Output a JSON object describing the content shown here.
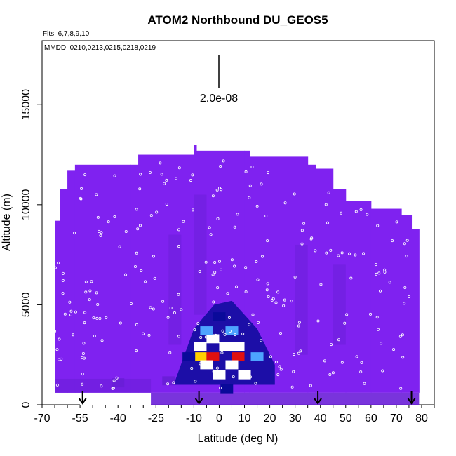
{
  "chart_data": {
    "type": "heatmap",
    "title": "ATOM2 Northbound DU_GEOS5",
    "flights_note": "Flts: 6,7,8,9,10",
    "dates_note": "MMDD: 0210,0213,0215,0218,0219",
    "scale_label": "2.0e-08",
    "xlabel": "Latitude (deg N)",
    "ylabel": "Altitude (m)",
    "xlim": [
      -70,
      85
    ],
    "ylim": [
      0,
      18200
    ],
    "x_ticks": [
      -70,
      -55,
      -40,
      -25,
      -10,
      0,
      10,
      20,
      30,
      40,
      50,
      60,
      70,
      80
    ],
    "y_ticks": [
      0,
      5000,
      10000,
      15000
    ],
    "x_tick_labels": [
      "-70",
      "-55",
      "-40",
      "-25",
      "-10",
      "0",
      "10",
      "20",
      "30",
      "40",
      "50",
      "60",
      "70",
      "80"
    ],
    "y_tick_labels": [
      "0",
      "5000",
      "10000",
      "15000"
    ],
    "grid": false,
    "colors": {
      "background_field": "#7f22f0",
      "low": "#6a1ed8",
      "mid": "#0a0a9a",
      "high1": "#4da3ff",
      "high2": "#ffffff",
      "peak1": "#ffd000",
      "peak2": "#e01010"
    },
    "ceiling_profile": [
      {
        "lat": -65,
        "alt": 9200
      },
      {
        "lat": -63,
        "alt": 10800
      },
      {
        "lat": -60,
        "alt": 11700
      },
      {
        "lat": -57,
        "alt": 12000
      },
      {
        "lat": -35,
        "alt": 12000
      },
      {
        "lat": -32,
        "alt": 12500
      },
      {
        "lat": -11,
        "alt": 12500
      },
      {
        "lat": -10,
        "alt": 13000
      },
      {
        "lat": -9,
        "alt": 12700
      },
      {
        "lat": 10,
        "alt": 12700
      },
      {
        "lat": 12,
        "alt": 12400
      },
      {
        "lat": 35,
        "alt": 12000
      },
      {
        "lat": 38,
        "alt": 11800
      },
      {
        "lat": 45,
        "alt": 10800
      },
      {
        "lat": 50,
        "alt": 10200
      },
      {
        "lat": 60,
        "alt": 9800
      },
      {
        "lat": 72,
        "alt": 9500
      },
      {
        "lat": 76,
        "alt": 8800
      },
      {
        "lat": 79,
        "alt": 8500
      }
    ],
    "dust_plume": [
      {
        "lat": -7.5,
        "alt": 2400,
        "value": 0.95
      },
      {
        "lat": -2.5,
        "alt": 2400,
        "value": 1.0
      },
      {
        "lat": 7.5,
        "alt": 2400,
        "value": 1.0
      },
      {
        "lat": -7.5,
        "alt": 2900,
        "value": 0.8
      },
      {
        "lat": -2.5,
        "alt": 3300,
        "value": 0.8
      },
      {
        "lat": 2.5,
        "alt": 2900,
        "value": 0.85
      },
      {
        "lat": 7.5,
        "alt": 2900,
        "value": 0.85
      },
      {
        "lat": -5,
        "alt": 2000,
        "value": 0.85
      },
      {
        "lat": 5,
        "alt": 2000,
        "value": 0.85
      },
      {
        "lat": 0,
        "alt": 1500,
        "value": 0.8
      },
      {
        "lat": 10,
        "alt": 1500,
        "value": 0.8
      },
      {
        "lat": -5,
        "alt": 3700,
        "value": 0.6
      },
      {
        "lat": 5,
        "alt": 3700,
        "value": 0.6
      },
      {
        "lat": 15,
        "alt": 2400,
        "value": 0.5
      },
      {
        "lat": -12,
        "alt": 2400,
        "value": 0.4
      },
      {
        "lat": 0,
        "alt": 4400,
        "value": 0.35
      },
      {
        "lat": 3,
        "alt": 800,
        "value": 0.45
      },
      {
        "lat": -20,
        "alt": 1200,
        "value": 0.1
      },
      {
        "lat": -40,
        "alt": 1100,
        "value": 0.1
      }
    ],
    "flight_markers_lat": [
      -54,
      -8,
      39,
      76
    ]
  }
}
